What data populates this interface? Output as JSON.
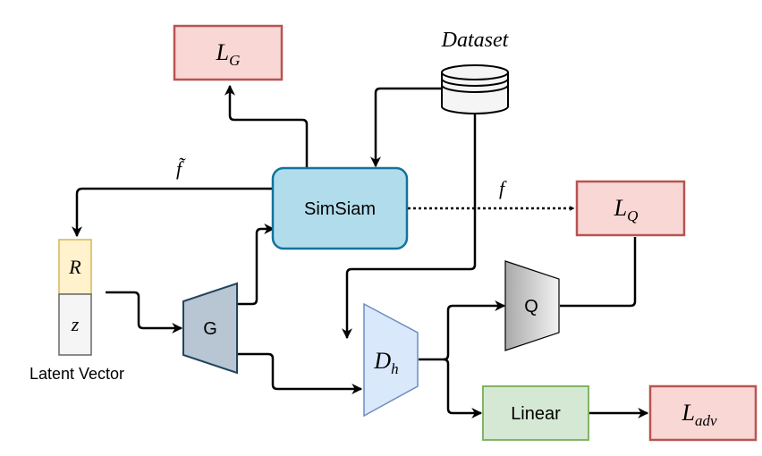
{
  "diagram": {
    "nodes": {
      "loss_g": {
        "label": "L",
        "sub": "G"
      },
      "loss_q": {
        "label": "L",
        "sub": "Q"
      },
      "loss_adv": {
        "label": "L",
        "sub": "adv"
      },
      "dataset": {
        "label": "Dataset"
      },
      "simsiam": {
        "label": "SimSiam"
      },
      "generator": {
        "label": "G"
      },
      "q_network": {
        "label": "Q"
      },
      "discriminator": {
        "label": "D",
        "sub": "h"
      },
      "linear": {
        "label": "Linear"
      },
      "latent_r": {
        "label": "R"
      },
      "latent_z": {
        "label": "z"
      },
      "latent_caption": {
        "label": "Latent Vector"
      }
    },
    "edge_labels": {
      "f_tilde": "f̃",
      "f": "f"
    },
    "colors": {
      "loss_fill": "#f8d7d5",
      "loss_stroke": "#b85450",
      "simsiam_fill": "#b1dceb",
      "simsiam_stroke": "#10739e",
      "generator_fill": "#b7c6d2",
      "generator_stroke": "#23445d",
      "discriminator_fill": "#dae8fc",
      "discriminator_stroke": "#6c8ebf",
      "linear_fill": "#d5e8d4",
      "linear_stroke": "#82b366",
      "r_fill": "#fff2cc",
      "r_stroke": "#d6b656",
      "z_fill": "#f5f5f5",
      "z_stroke": "#666666"
    }
  }
}
